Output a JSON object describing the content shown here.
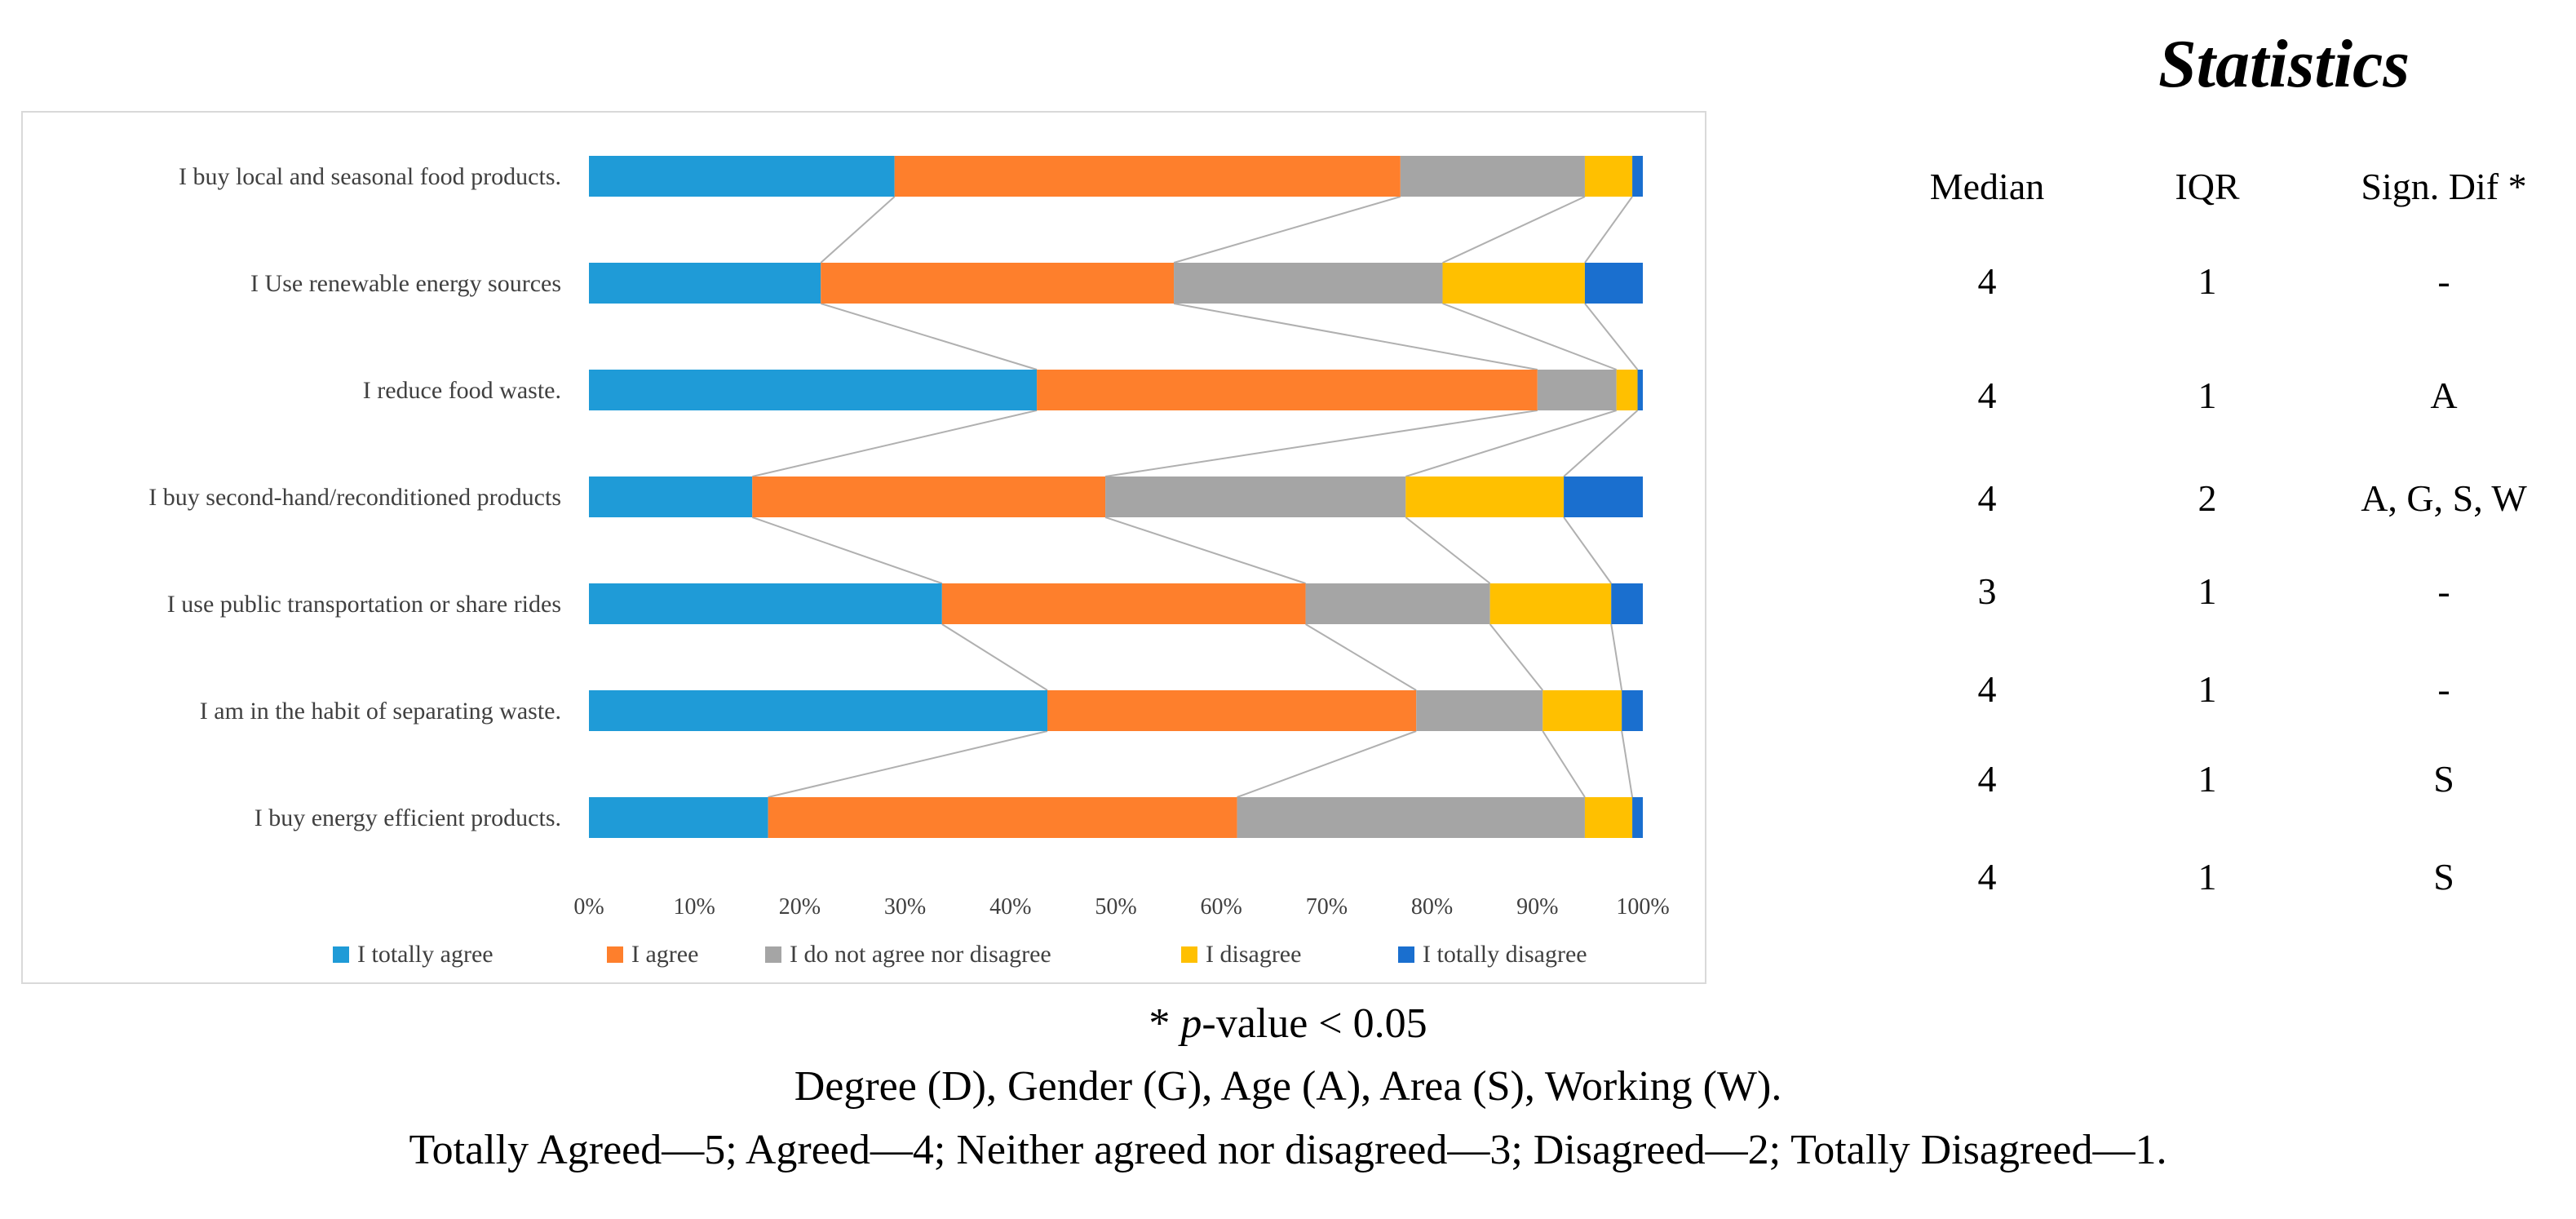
{
  "chart_data": {
    "type": "bar",
    "orientation": "horizontal",
    "stacked": true,
    "categories": [
      "I buy local and seasonal food products.",
      "I Use renewable energy sources",
      "I reduce food waste.",
      "I buy second-hand/reconditioned products",
      "I use public transportation or share rides",
      "I am in the habit of separating waste.",
      "I buy energy efficient products."
    ],
    "series": [
      {
        "name": "I totally agree",
        "color": "#1f9bd7",
        "values": [
          29,
          22,
          42.5,
          15.5,
          33.5,
          43.5,
          17
        ]
      },
      {
        "name": "I agree",
        "color": "#fe7f2c",
        "values": [
          48,
          33.5,
          47.5,
          33.5,
          34.5,
          35,
          44.5
        ]
      },
      {
        "name": "I do not agree nor disagree",
        "color": "#a5a5a5",
        "values": [
          17.5,
          25.5,
          7.5,
          28.5,
          17.5,
          12,
          33
        ]
      },
      {
        "name": "I disagree",
        "color": "#ffc000",
        "values": [
          4.5,
          13.5,
          2,
          15,
          11.5,
          7.5,
          4.5
        ]
      },
      {
        "name": "I totally disagree",
        "color": "#1a6fcf",
        "values": [
          1,
          5.5,
          0.5,
          7.5,
          3,
          2,
          1
        ]
      }
    ],
    "xlim": [
      0,
      100
    ],
    "xticks": [
      "0%",
      "10%",
      "20%",
      "30%",
      "40%",
      "50%",
      "60%",
      "70%",
      "80%",
      "90%",
      "100%"
    ],
    "legend_position": "bottom",
    "series_lines": true
  },
  "statistics": {
    "title": "Statistics",
    "headers": [
      "Median",
      "IQR",
      "Sign. Dif *"
    ],
    "rows": [
      {
        "median": "4",
        "iqr": "1",
        "sign": "-"
      },
      {
        "median": "4",
        "iqr": "1",
        "sign": "A"
      },
      {
        "median": "4",
        "iqr": "2",
        "sign": "A, G, S, W"
      },
      {
        "median": "3",
        "iqr": "1",
        "sign": "-"
      },
      {
        "median": "4",
        "iqr": "1",
        "sign": "-"
      },
      {
        "median": "4",
        "iqr": "1",
        "sign": "S"
      },
      {
        "median": "4",
        "iqr": "1",
        "sign": "S"
      }
    ]
  },
  "footnotes": {
    "pvalue_prefix": "* ",
    "pvalue_symbol": "p",
    "pvalue_suffix": "-value < 0.05",
    "abbreviations": "Degree (D), Gender (G), Age (A), Area (S), Working (W).",
    "scale": "Totally Agreed—5; Agreed—4; Neither agreed nor disagreed—3; Disagreed—2; Totally Disagreed—1."
  }
}
